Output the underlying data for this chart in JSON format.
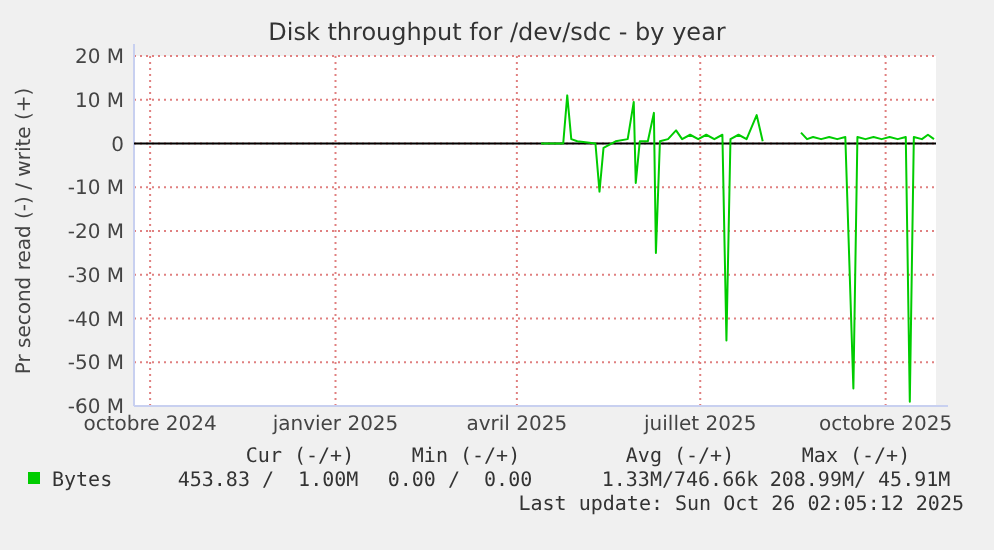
{
  "chart_data": {
    "type": "line",
    "title": "Disk throughput for /dev/sdc - by year",
    "ylabel": "Pr second read (-) / write (+)",
    "x": [
      "2025-04-13",
      "2025-04-24",
      "2025-04-26",
      "2025-04-28",
      "2025-05-01",
      "2025-05-10",
      "2025-05-12",
      "2025-05-14",
      "2025-05-20",
      "2025-05-26",
      "2025-05-29",
      "2025-05-30",
      "2025-06-01",
      "2025-06-05",
      "2025-06-08",
      "2025-06-09",
      "2025-06-11",
      "2025-06-15",
      "2025-06-19",
      "2025-06-22",
      "2025-06-26",
      "2025-06-30",
      "2025-07-04",
      "2025-07-08",
      "2025-07-12",
      "2025-07-14",
      "2025-07-16",
      "2025-07-20",
      "2025-07-24",
      "2025-07-29",
      "2025-08-01",
      "2025-08-02",
      "2025-08-20",
      "2025-08-23",
      "2025-08-26",
      "2025-08-30",
      "2025-09-03",
      "2025-09-07",
      "2025-09-11",
      "2025-09-15",
      "2025-09-17",
      "2025-09-21",
      "2025-09-25",
      "2025-09-29",
      "2025-10-03",
      "2025-10-07",
      "2025-10-11",
      "2025-10-13",
      "2025-10-15",
      "2025-10-19",
      "2025-10-22",
      "2025-10-25"
    ],
    "series": [
      {
        "name": "Bytes",
        "color": "#00cc00",
        "values": [
          0,
          0,
          11,
          1,
          0.5,
          0,
          -11,
          -1,
          0.5,
          1,
          9.5,
          -9,
          0.5,
          0.5,
          7,
          -25,
          0.5,
          1,
          3,
          1,
          2,
          1,
          2,
          1,
          2,
          -45,
          1,
          2,
          1,
          6.5,
          0.5,
          null,
          2.5,
          1,
          1.5,
          1,
          1.5,
          1,
          1.5,
          -56,
          1.5,
          1,
          1.5,
          1,
          1.5,
          1,
          1.5,
          -59,
          1.5,
          1,
          2,
          1
        ]
      }
    ],
    "xlim": [
      "2024-09-23",
      "2025-10-26"
    ],
    "xticks": [
      {
        "value": "2024-10-01",
        "label": "octobre 2024"
      },
      {
        "value": "2025-01-01",
        "label": "janvier 2025"
      },
      {
        "value": "2025-04-01",
        "label": "avril 2025"
      },
      {
        "value": "2025-07-01",
        "label": "juillet 2025"
      },
      {
        "value": "2025-10-01",
        "label": "octobre 2025"
      }
    ],
    "ylim": [
      -60,
      20
    ],
    "yticks": [
      {
        "value": 20,
        "label": "20 M"
      },
      {
        "value": 10,
        "label": "10 M"
      },
      0,
      {
        "value": -10,
        "label": "-10 M"
      },
      {
        "value": -20,
        "label": "-20 M"
      },
      {
        "value": -30,
        "label": "-30 M"
      },
      {
        "value": -40,
        "label": "-40 M"
      },
      {
        "value": -50,
        "label": "-50 M"
      },
      {
        "value": -60,
        "label": "-60 M"
      }
    ],
    "ref_lines": [
      {
        "axis": "y",
        "value": 0,
        "color": "#000000"
      }
    ],
    "grid": true,
    "legend": "bottom",
    "annotations": [
      "Cur (-/+)",
      "Min (-/+)",
      "Avg (-/+)",
      "Max (-/+)",
      "453.83 /  1.00M",
      "0.00 /  0.00",
      "1.33M/746.66k",
      "208.99M/ 45.91M",
      "Last update: Sun Oct 26 02:05:12 2025"
    ]
  }
}
